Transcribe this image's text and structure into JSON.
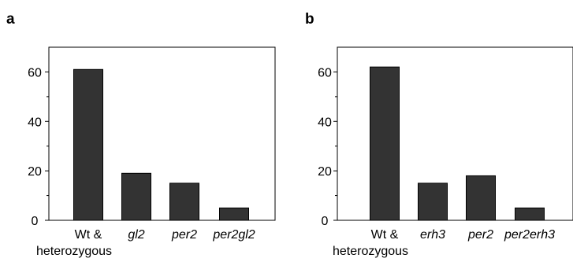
{
  "chart_data": [
    {
      "type": "bar",
      "panel_label": "a",
      "categories": [
        "Wt &",
        "gl2",
        "per2",
        "per2gl2"
      ],
      "category_second_line": [
        "heterozygous",
        "",
        "",
        ""
      ],
      "category_italic": [
        false,
        true,
        true,
        true
      ],
      "values": [
        61,
        19,
        15,
        5
      ],
      "ylim": [
        0,
        70
      ],
      "yticks": [
        0,
        20,
        40,
        60
      ],
      "yticklabels": [
        "0",
        "20",
        "40",
        "60"
      ],
      "bar_color": "#333333",
      "grid": false
    },
    {
      "type": "bar",
      "panel_label": "b",
      "categories": [
        "Wt &",
        "erh3",
        "per2",
        "per2erh3"
      ],
      "category_second_line": [
        "heterozygous",
        "",
        "",
        ""
      ],
      "category_italic": [
        false,
        true,
        true,
        true
      ],
      "values": [
        62,
        15,
        18,
        5
      ],
      "ylim": [
        0,
        70
      ],
      "yticks": [
        0,
        20,
        40,
        60
      ],
      "yticklabels": [
        "0",
        "20",
        "40",
        "60"
      ],
      "bar_color": "#333333",
      "grid": false
    }
  ]
}
